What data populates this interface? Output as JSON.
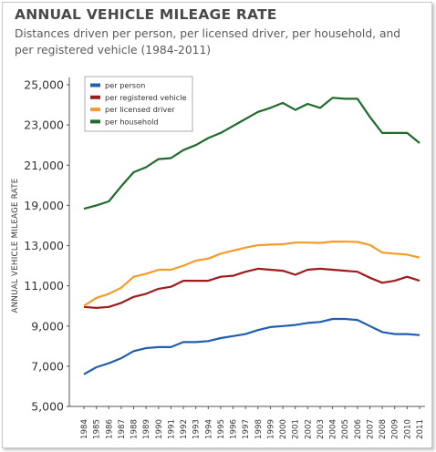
{
  "title": "ANNUAL VEHICLE MILEAGE RATE",
  "subtitle": "Distances driven per person, per licensed driver, per household, and per registered vehicle (1984-2011)",
  "chart_data": {
    "type": "line",
    "title": "ANNUAL VEHICLE MILEAGE RATE",
    "ylabel": "ANNUAL VEHICLE MILEAGE RATE",
    "xlabel": "",
    "ylim": [
      5000,
      25000
    ],
    "yticks": [
      "5,000",
      "7,000",
      "9,000",
      "11,000",
      "13,000",
      "19,000",
      "21,000",
      "23,000",
      "25,000"
    ],
    "x": [
      "1984",
      "1985",
      "1986",
      "1987",
      "1988",
      "1989",
      "1990",
      "1991",
      "1992",
      "1993",
      "1994",
      "1995",
      "1996",
      "1997",
      "1998",
      "1999",
      "2000",
      "2001",
      "2002",
      "2003",
      "2004",
      "2005",
      "2006",
      "2007",
      "2008",
      "2009",
      "2010",
      "2011"
    ],
    "legend_position": "top-left",
    "grid": false,
    "series": [
      {
        "name": "per person",
        "color": "#1f5fae",
        "values": [
          6600,
          6950,
          7150,
          7400,
          7750,
          7900,
          7950,
          7950,
          8200,
          8200,
          8250,
          8400,
          8500,
          8600,
          8800,
          8950,
          9000,
          9050,
          9150,
          9200,
          9350,
          9350,
          9300,
          9000,
          8700,
          8600,
          8600,
          8550
        ]
      },
      {
        "name": "per registered vehicle",
        "color": "#9c1c1c",
        "values": [
          9950,
          9900,
          9950,
          10150,
          10450,
          10600,
          10850,
          10950,
          11250,
          11250,
          11250,
          11450,
          11500,
          11700,
          11850,
          11800,
          11750,
          11550,
          11800,
          11850,
          11800,
          11750,
          11700,
          11400,
          11150,
          11250,
          11450,
          11250
        ]
      },
      {
        "name": "per licensed driver",
        "color": "#f39c2a",
        "values": [
          10000,
          10400,
          10600,
          10900,
          11450,
          11600,
          11800,
          11800,
          12000,
          12250,
          12350,
          12600,
          12750,
          12900,
          13050,
          13150,
          13200,
          13450,
          13450,
          13400,
          13600,
          13600,
          13550,
          13100,
          12650,
          12600,
          12550,
          12400
        ]
      },
      {
        "name": "per household",
        "color": "#1e6b2c",
        "values": [
          18500,
          19000,
          19200,
          19950,
          20650,
          20900,
          21300,
          21350,
          21750,
          22000,
          22350,
          22600,
          22950,
          23300,
          23650,
          23850,
          24100,
          23750,
          24050,
          23850,
          24350,
          24300,
          24300,
          23400,
          22600,
          22600,
          22600,
          22100
        ]
      }
    ]
  }
}
